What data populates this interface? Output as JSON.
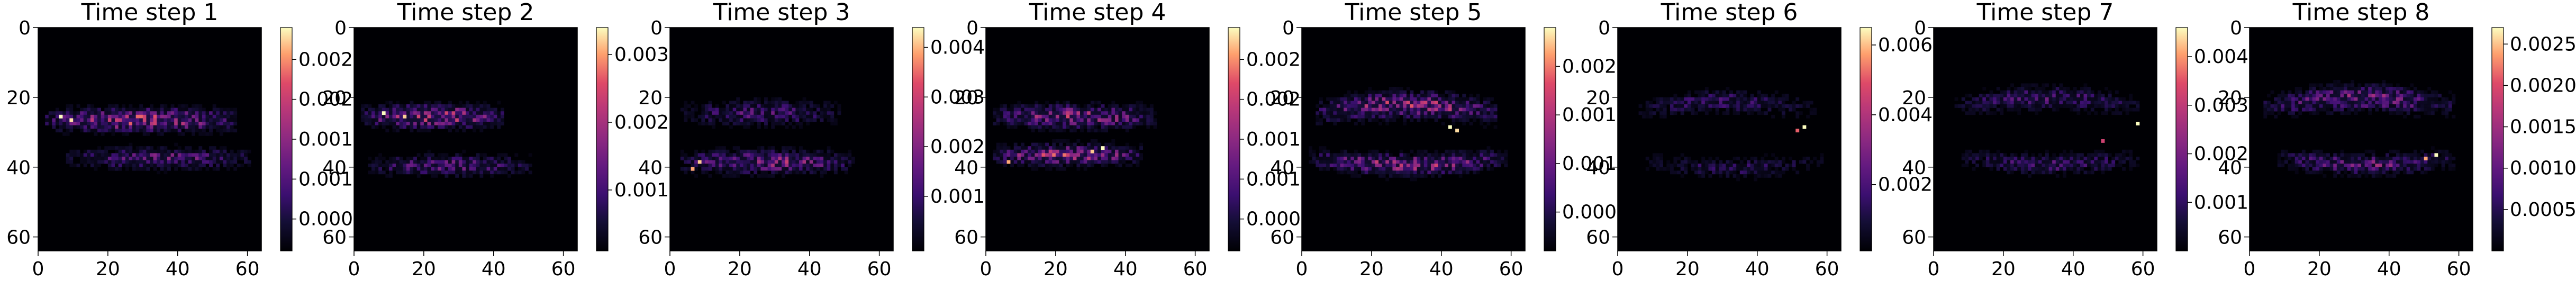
{
  "chart_data": {
    "type": "heatmap",
    "colormap": "magma",
    "grid": false,
    "x_ticks": [
      0,
      20,
      40,
      60
    ],
    "y_ticks": [
      0,
      20,
      40,
      60
    ],
    "xlim": [
      0,
      64
    ],
    "ylim": [
      64,
      0
    ],
    "grid_size": 64,
    "panels": [
      {
        "title": "Time step 1",
        "colorbar_ticks": [
          "0.000",
          "0.001",
          "0.001",
          "0.002",
          "0.002"
        ],
        "colorbar_tick_values": [
          0.0004,
          0.0009,
          0.0014,
          0.0019,
          0.0024
        ],
        "vmin": 0.0,
        "vmax": 0.0028,
        "bands": [
          {
            "y": 26,
            "x_start": 2,
            "x_end": 56,
            "amplitude": 0.0026,
            "width": 2.0
          },
          {
            "y": 37,
            "x_start": 8,
            "x_end": 60,
            "amplitude": 0.0016,
            "width": 1.8
          }
        ],
        "hotspots": [
          {
            "x": 6,
            "y": 25,
            "value": 0.0028
          },
          {
            "x": 9,
            "y": 26,
            "value": 0.0027
          }
        ]
      },
      {
        "title": "Time step 2",
        "colorbar_ticks": [
          "0.001",
          "0.002",
          "0.003"
        ],
        "colorbar_tick_values": [
          0.0009,
          0.0019,
          0.0029
        ],
        "vmin": 0.0,
        "vmax": 0.0033,
        "bands": [
          {
            "y": 25,
            "x_start": 2,
            "x_end": 42,
            "amplitude": 0.003,
            "width": 2.0
          },
          {
            "y": 39,
            "x_start": 4,
            "x_end": 50,
            "amplitude": 0.0018,
            "width": 1.8
          }
        ],
        "hotspots": [
          {
            "x": 8,
            "y": 24,
            "value": 0.0033
          },
          {
            "x": 14,
            "y": 25,
            "value": 0.0031
          }
        ]
      },
      {
        "title": "Time step 3",
        "colorbar_ticks": [
          "0.001",
          "0.002",
          "0.003",
          "0.004"
        ],
        "colorbar_tick_values": [
          0.0011,
          0.0021,
          0.0031,
          0.0041
        ],
        "vmin": 0.0,
        "vmax": 0.0045,
        "bands": [
          {
            "y": 24,
            "x_start": 3,
            "x_end": 48,
            "amplitude": 0.002,
            "width": 2.2
          },
          {
            "y": 38,
            "x_start": 3,
            "x_end": 52,
            "amplitude": 0.0032,
            "width": 2.0
          }
        ],
        "hotspots": [
          {
            "x": 8,
            "y": 38,
            "value": 0.0042
          },
          {
            "x": 6,
            "y": 40,
            "value": 0.004
          }
        ]
      },
      {
        "title": "Time step 4",
        "colorbar_ticks": [
          "0.000",
          "0.001",
          "0.001",
          "0.002",
          "0.002"
        ],
        "colorbar_tick_values": [
          0.0004,
          0.0009,
          0.0014,
          0.0019,
          0.0024
        ],
        "vmin": 0.0,
        "vmax": 0.0028,
        "bands": [
          {
            "y": 25,
            "x_start": 2,
            "x_end": 48,
            "amplitude": 0.0022,
            "width": 2.0
          },
          {
            "y": 36,
            "x_start": 2,
            "x_end": 44,
            "amplitude": 0.0024,
            "width": 1.8
          }
        ],
        "hotspots": [
          {
            "x": 33,
            "y": 34,
            "value": 0.0028
          },
          {
            "x": 30,
            "y": 35,
            "value": 0.0026
          },
          {
            "x": 6,
            "y": 38,
            "value": 0.0025
          }
        ]
      },
      {
        "title": "Time step 5",
        "colorbar_ticks": [
          "0.000",
          "0.001",
          "0.001",
          "0.002"
        ],
        "colorbar_tick_values": [
          0.0004,
          0.0009,
          0.0014,
          0.0019
        ],
        "vmin": 0.0,
        "vmax": 0.0023,
        "bands": [
          {
            "y": 24,
            "x_start": 4,
            "x_end": 55,
            "amplitude": 0.002,
            "width": 2.2,
            "arc": 4
          },
          {
            "y": 37,
            "x_start": 2,
            "x_end": 58,
            "amplitude": 0.0018,
            "width": 1.8,
            "arc": 3
          }
        ],
        "hotspots": [
          {
            "x": 42,
            "y": 28,
            "value": 0.0023
          },
          {
            "x": 44,
            "y": 29,
            "value": 0.0022
          }
        ]
      },
      {
        "title": "Time step 6",
        "colorbar_ticks": [
          "0.002",
          "0.004",
          "0.006"
        ],
        "colorbar_tick_values": [
          0.0019,
          0.0039,
          0.0059
        ],
        "vmin": 0.0,
        "vmax": 0.0064,
        "bands": [
          {
            "y": 23,
            "x_start": 6,
            "x_end": 56,
            "amplitude": 0.0025,
            "width": 2.0,
            "arc": 4
          },
          {
            "y": 38,
            "x_start": 8,
            "x_end": 58,
            "amplitude": 0.002,
            "width": 1.8,
            "arc": 3
          }
        ],
        "hotspots": [
          {
            "x": 53,
            "y": 28,
            "value": 0.0064
          },
          {
            "x": 51,
            "y": 29,
            "value": 0.005
          }
        ]
      },
      {
        "title": "Time step 7",
        "colorbar_ticks": [
          "0.001",
          "0.002",
          "0.003",
          "0.004"
        ],
        "colorbar_tick_values": [
          0.001,
          0.002,
          0.003,
          0.004
        ],
        "vmin": 0.0,
        "vmax": 0.0046,
        "bands": [
          {
            "y": 22,
            "x_start": 6,
            "x_end": 58,
            "amplitude": 0.0022,
            "width": 2.0,
            "arc": 4
          },
          {
            "y": 37,
            "x_start": 8,
            "x_end": 58,
            "amplitude": 0.002,
            "width": 1.8,
            "arc": 3
          }
        ],
        "hotspots": [
          {
            "x": 58,
            "y": 27,
            "value": 0.0046
          },
          {
            "x": 48,
            "y": 32,
            "value": 0.0032
          }
        ]
      },
      {
        "title": "Time step 8",
        "colorbar_ticks": [
          "0.0005",
          "0.0010",
          "0.0015",
          "0.0020",
          "0.0025"
        ],
        "colorbar_tick_values": [
          0.0005,
          0.001,
          0.0015,
          0.002,
          0.0025
        ],
        "vmin": 0.0,
        "vmax": 0.0027,
        "bands": [
          {
            "y": 22,
            "x_start": 4,
            "x_end": 58,
            "amplitude": 0.0018,
            "width": 2.2,
            "arc": 4
          },
          {
            "y": 37,
            "x_start": 8,
            "x_end": 58,
            "amplitude": 0.0016,
            "width": 1.8,
            "arc": 3
          }
        ],
        "hotspots": [
          {
            "x": 53,
            "y": 36,
            "value": 0.0027
          },
          {
            "x": 50,
            "y": 37,
            "value": 0.0024
          }
        ]
      }
    ]
  }
}
